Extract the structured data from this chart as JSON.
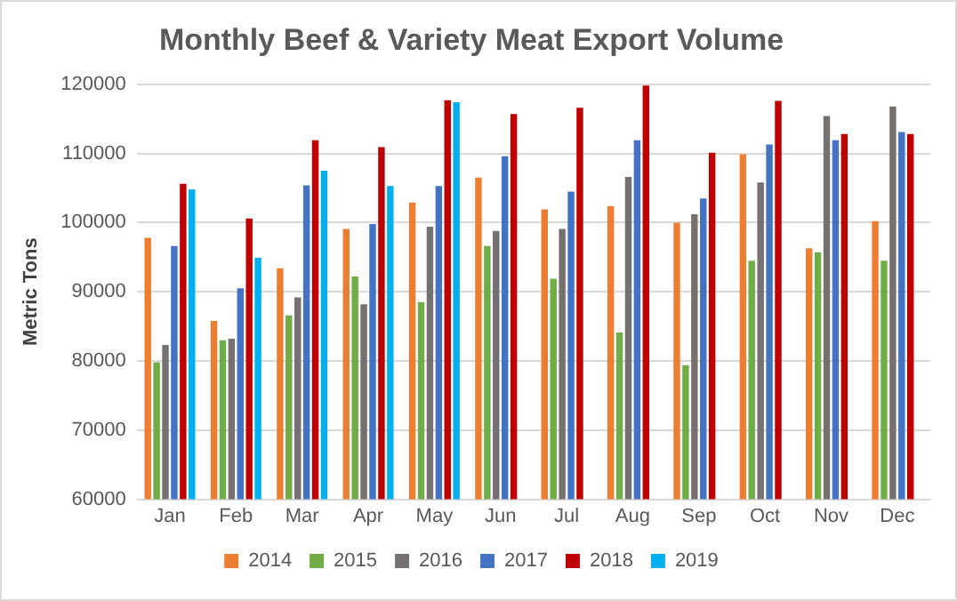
{
  "chart_data": {
    "type": "bar",
    "title": "Monthly Beef & Variety Meat Export Volume",
    "ylabel": "Metric Tons",
    "categories": [
      "Jan",
      "Feb",
      "Mar",
      "Apr",
      "May",
      "Jun",
      "Jul",
      "Aug",
      "Sep",
      "Oct",
      "Nov",
      "Dec"
    ],
    "series": [
      {
        "name": "2014",
        "color": "#ed7d31",
        "values": [
          97800,
          85800,
          93400,
          99100,
          102900,
          106500,
          101900,
          102400,
          100000,
          109900,
          96300,
          100200
        ]
      },
      {
        "name": "2015",
        "color": "#70ad47",
        "values": [
          79800,
          83000,
          86600,
          92200,
          88500,
          96600,
          91900,
          84100,
          79400,
          94500,
          95700,
          94500
        ]
      },
      {
        "name": "2016",
        "color": "#767171",
        "values": [
          82300,
          83200,
          89200,
          88200,
          99400,
          98800,
          99100,
          106600,
          101200,
          105800,
          115400,
          116800
        ]
      },
      {
        "name": "2017",
        "color": "#4472c4",
        "values": [
          96600,
          90500,
          105400,
          99800,
          105300,
          109600,
          104500,
          111900,
          103500,
          111300,
          111900,
          113100
        ]
      },
      {
        "name": "2018",
        "color": "#c00000",
        "values": [
          105600,
          100600,
          111900,
          110900,
          117700,
          115700,
          116600,
          119800,
          110100,
          117600,
          112800,
          112800
        ]
      },
      {
        "name": "2019",
        "color": "#00b0f0",
        "values": [
          104800,
          94900,
          107500,
          105300,
          117400,
          null,
          null,
          null,
          null,
          null,
          null,
          null
        ]
      }
    ],
    "ylim": [
      60000,
      120000
    ],
    "yticks": [
      60000,
      70000,
      80000,
      90000,
      100000,
      110000,
      120000
    ],
    "grid": "y",
    "legend": "bottom"
  }
}
